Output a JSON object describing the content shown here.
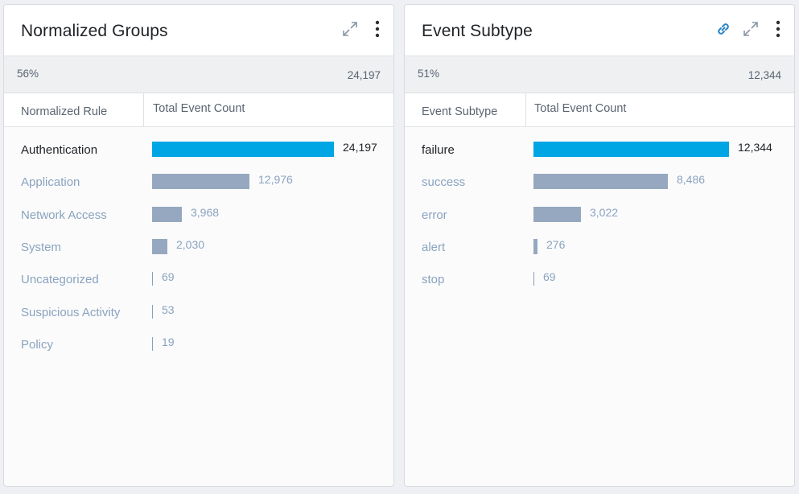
{
  "panels": [
    {
      "title": "Normalized Groups",
      "summary": {
        "percent": "56%",
        "total": "24,197"
      },
      "columns": {
        "label": "Normalized Rule",
        "value": "Total Event Count"
      },
      "has_link_icon": false,
      "icons": [
        "expand-icon",
        "more-vertical-icon"
      ],
      "max_value": 24197,
      "rows": [
        {
          "label": "Authentication",
          "value": 24197,
          "display": "24,197",
          "highlight": true
        },
        {
          "label": "Application",
          "value": 12976,
          "display": "12,976",
          "highlight": false
        },
        {
          "label": "Network Access",
          "value": 3968,
          "display": "3,968",
          "highlight": false
        },
        {
          "label": "System",
          "value": 2030,
          "display": "2,030",
          "highlight": false
        },
        {
          "label": "Uncategorized",
          "value": 69,
          "display": "69",
          "highlight": false
        },
        {
          "label": "Suspicious Activity",
          "value": 53,
          "display": "53",
          "highlight": false
        },
        {
          "label": "Policy",
          "value": 19,
          "display": "19",
          "highlight": false
        }
      ]
    },
    {
      "title": "Event Subtype",
      "summary": {
        "percent": "51%",
        "total": "12,344"
      },
      "columns": {
        "label": "Event Subtype",
        "value": "Total Event Count"
      },
      "has_link_icon": true,
      "icons": [
        "link-icon",
        "expand-icon",
        "more-vertical-icon"
      ],
      "max_value": 12344,
      "rows": [
        {
          "label": "failure",
          "value": 12344,
          "display": "12,344",
          "highlight": true
        },
        {
          "label": "success",
          "value": 8486,
          "display": "8,486",
          "highlight": false
        },
        {
          "label": "error",
          "value": 3022,
          "display": "3,022",
          "highlight": false
        },
        {
          "label": "alert",
          "value": 276,
          "display": "276",
          "highlight": false
        },
        {
          "label": "stop",
          "value": 69,
          "display": "69",
          "highlight": false
        }
      ]
    }
  ],
  "colors": {
    "highlight_bar": "#00a5e3",
    "default_bar": "#96a8bf",
    "link_icon": "#2a85c6"
  }
}
